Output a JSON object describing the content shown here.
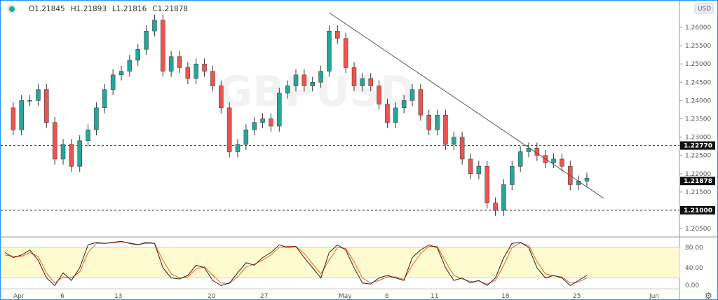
{
  "legend": {
    "open": "O1.21845",
    "high": "H1.21893",
    "low": "L1.21816",
    "close": "C1.21878"
  },
  "currency": "USD",
  "colors": {
    "up": "#26a69a",
    "down": "#ef5350",
    "stoch_k": "#222222",
    "stoch_d": "#ff5722",
    "band": "#fffbd0"
  },
  "chart_data": [
    {
      "type": "candlestick",
      "symbol_watermark": "GBPUSD",
      "yticks": [
        "1.26000",
        "1.25500",
        "1.25000",
        "1.24500",
        "1.24000",
        "1.23500",
        "1.23000",
        "1.22500",
        "1.22000",
        "1.21500",
        "1.20500"
      ],
      "ytick_values": [
        1.26,
        1.255,
        1.25,
        1.245,
        1.24,
        1.235,
        1.23,
        1.225,
        1.22,
        1.215,
        1.205
      ],
      "ylim": [
        1.2025,
        1.2665
      ],
      "xticks": [
        "Apr",
        "6",
        "13",
        "20",
        "27",
        "May",
        "6",
        "11",
        "18",
        "25",
        "Jun"
      ],
      "closes": [
        1.238,
        1.232,
        1.24,
        1.24,
        1.243,
        1.234,
        1.224,
        1.228,
        1.222,
        1.229,
        1.232,
        1.238,
        1.243,
        1.247,
        1.248,
        1.251,
        1.254,
        1.259,
        1.262,
        1.248,
        1.252,
        1.249,
        1.246,
        1.25,
        1.248,
        1.244,
        1.238,
        1.226,
        1.228,
        1.232,
        1.234,
        1.235,
        1.233,
        1.242,
        1.244,
        1.247,
        1.244,
        1.245,
        1.248,
        1.259,
        1.257,
        1.249,
        1.244,
        1.246,
        1.244,
        1.239,
        1.234,
        1.238,
        1.24,
        1.243,
        1.236,
        1.232,
        1.236,
        1.228,
        1.23,
        1.224,
        1.22,
        1.222,
        1.212,
        1.21,
        1.217,
        1.222,
        1.226,
        1.227,
        1.225,
        1.223,
        1.224,
        1.222,
        1.217,
        1.218,
        1.21878
      ],
      "horizontal_lines": [
        {
          "price": 1.2277,
          "label": "1.22770"
        },
        {
          "price": 1.21,
          "label": "1.21000"
        }
      ],
      "last_price": {
        "price": 1.21878,
        "label": "1.21878"
      },
      "trendline": {
        "from_price": 1.264,
        "to_price": 1.2133,
        "from_index": 39,
        "to_index": 71
      }
    },
    {
      "type": "line",
      "name": "Stochastic",
      "yticks": [
        "80.00",
        "40.00",
        "0.00"
      ],
      "ylim": [
        0,
        100
      ],
      "band": [
        20,
        80
      ],
      "k": [
        70,
        60,
        65,
        75,
        55,
        20,
        5,
        30,
        15,
        40,
        85,
        90,
        88,
        90,
        92,
        88,
        85,
        90,
        88,
        40,
        20,
        18,
        25,
        45,
        40,
        15,
        5,
        10,
        30,
        50,
        45,
        60,
        70,
        85,
        80,
        82,
        60,
        40,
        20,
        70,
        85,
        75,
        40,
        10,
        8,
        20,
        25,
        20,
        15,
        60,
        75,
        85,
        80,
        40,
        15,
        20,
        10,
        15,
        5,
        20,
        60,
        88,
        90,
        80,
        40,
        20,
        25,
        20,
        5,
        15,
        25
      ],
      "d": [
        65,
        63,
        62,
        70,
        62,
        30,
        10,
        22,
        20,
        32,
        70,
        88,
        88,
        89,
        91,
        89,
        86,
        88,
        88,
        55,
        28,
        20,
        22,
        38,
        42,
        25,
        10,
        9,
        22,
        42,
        47,
        55,
        65,
        80,
        82,
        82,
        68,
        48,
        28,
        55,
        80,
        78,
        52,
        20,
        10,
        15,
        22,
        22,
        17,
        45,
        68,
        82,
        82,
        52,
        25,
        18,
        13,
        14,
        8,
        15,
        45,
        80,
        89,
        84,
        52,
        28,
        24,
        22,
        10,
        12,
        20
      ]
    }
  ]
}
